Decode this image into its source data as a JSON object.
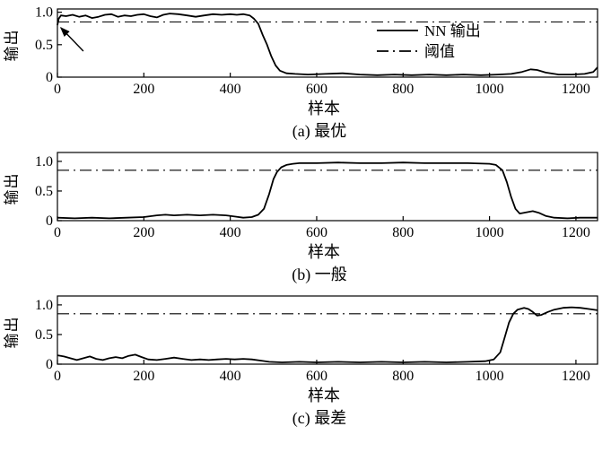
{
  "colors": {
    "line": "#000000",
    "threshold": "#000000",
    "axis": "#000000",
    "background": "#ffffff"
  },
  "chart_data": [
    {
      "id": "a",
      "type": "line",
      "xlabel": "样本",
      "ylabel": "输出",
      "caption": "(a) 最优",
      "xlim": [
        0,
        1250
      ],
      "ylim": [
        0,
        1.05
      ],
      "x_ticks": [
        0,
        200,
        400,
        600,
        800,
        1000,
        1200
      ],
      "y_ticks": [
        0,
        0.5,
        1.0
      ],
      "y_tick_labels": [
        "0",
        "0.5",
        "1.0"
      ],
      "grid": false,
      "threshold": 0.85,
      "legend": [
        {
          "label": "NN 输出",
          "style": "solid"
        },
        {
          "label": "阈值",
          "style": "dashdot"
        }
      ],
      "legend_position": "right-center",
      "arrow": {
        "from": [
          60,
          0.4
        ],
        "to": [
          8,
          0.76
        ]
      },
      "series": [
        [
          0,
          0.8
        ],
        [
          3,
          0.9
        ],
        [
          8,
          0.95
        ],
        [
          20,
          0.94
        ],
        [
          35,
          0.96
        ],
        [
          50,
          0.93
        ],
        [
          65,
          0.95
        ],
        [
          80,
          0.91
        ],
        [
          95,
          0.93
        ],
        [
          110,
          0.96
        ],
        [
          125,
          0.97
        ],
        [
          140,
          0.93
        ],
        [
          155,
          0.95
        ],
        [
          170,
          0.94
        ],
        [
          185,
          0.96
        ],
        [
          200,
          0.97
        ],
        [
          215,
          0.94
        ],
        [
          230,
          0.92
        ],
        [
          245,
          0.96
        ],
        [
          260,
          0.98
        ],
        [
          280,
          0.97
        ],
        [
          300,
          0.95
        ],
        [
          320,
          0.93
        ],
        [
          340,
          0.95
        ],
        [
          360,
          0.97
        ],
        [
          380,
          0.96
        ],
        [
          400,
          0.97
        ],
        [
          415,
          0.96
        ],
        [
          430,
          0.97
        ],
        [
          445,
          0.95
        ],
        [
          455,
          0.9
        ],
        [
          465,
          0.82
        ],
        [
          475,
          0.65
        ],
        [
          485,
          0.5
        ],
        [
          495,
          0.32
        ],
        [
          505,
          0.18
        ],
        [
          515,
          0.1
        ],
        [
          530,
          0.06
        ],
        [
          550,
          0.05
        ],
        [
          580,
          0.04
        ],
        [
          620,
          0.05
        ],
        [
          660,
          0.06
        ],
        [
          700,
          0.04
        ],
        [
          740,
          0.03
        ],
        [
          780,
          0.04
        ],
        [
          820,
          0.03
        ],
        [
          860,
          0.04
        ],
        [
          900,
          0.03
        ],
        [
          940,
          0.04
        ],
        [
          980,
          0.03
        ],
        [
          1020,
          0.04
        ],
        [
          1050,
          0.05
        ],
        [
          1075,
          0.08
        ],
        [
          1095,
          0.12
        ],
        [
          1110,
          0.11
        ],
        [
          1130,
          0.07
        ],
        [
          1160,
          0.04
        ],
        [
          1190,
          0.04
        ],
        [
          1220,
          0.05
        ],
        [
          1240,
          0.08
        ],
        [
          1250,
          0.15
        ]
      ]
    },
    {
      "id": "b",
      "type": "line",
      "xlabel": "样本",
      "ylabel": "输出",
      "caption": "(b) 一般",
      "xlim": [
        0,
        1250
      ],
      "ylim": [
        0,
        1.15
      ],
      "x_ticks": [
        0,
        200,
        400,
        600,
        800,
        1000,
        1200
      ],
      "y_ticks": [
        0,
        0.5,
        1.0
      ],
      "y_tick_labels": [
        "0",
        "0.5",
        "1.0"
      ],
      "grid": false,
      "threshold": 0.85,
      "legend": null,
      "series": [
        [
          0,
          0.05
        ],
        [
          40,
          0.04
        ],
        [
          80,
          0.05
        ],
        [
          120,
          0.04
        ],
        [
          160,
          0.05
        ],
        [
          200,
          0.06
        ],
        [
          230,
          0.09
        ],
        [
          250,
          0.1
        ],
        [
          270,
          0.09
        ],
        [
          300,
          0.1
        ],
        [
          330,
          0.09
        ],
        [
          360,
          0.1
        ],
        [
          390,
          0.09
        ],
        [
          410,
          0.07
        ],
        [
          430,
          0.05
        ],
        [
          450,
          0.06
        ],
        [
          465,
          0.1
        ],
        [
          478,
          0.2
        ],
        [
          490,
          0.45
        ],
        [
          500,
          0.7
        ],
        [
          508,
          0.82
        ],
        [
          518,
          0.9
        ],
        [
          530,
          0.94
        ],
        [
          545,
          0.96
        ],
        [
          560,
          0.97
        ],
        [
          600,
          0.97
        ],
        [
          650,
          0.98
        ],
        [
          700,
          0.97
        ],
        [
          750,
          0.97
        ],
        [
          800,
          0.98
        ],
        [
          850,
          0.97
        ],
        [
          900,
          0.97
        ],
        [
          950,
          0.97
        ],
        [
          1000,
          0.96
        ],
        [
          1015,
          0.94
        ],
        [
          1030,
          0.85
        ],
        [
          1040,
          0.65
        ],
        [
          1050,
          0.4
        ],
        [
          1060,
          0.2
        ],
        [
          1070,
          0.12
        ],
        [
          1085,
          0.14
        ],
        [
          1100,
          0.16
        ],
        [
          1115,
          0.13
        ],
        [
          1130,
          0.08
        ],
        [
          1150,
          0.05
        ],
        [
          1180,
          0.04
        ],
        [
          1210,
          0.05
        ],
        [
          1250,
          0.05
        ]
      ]
    },
    {
      "id": "c",
      "type": "line",
      "xlabel": "样本",
      "ylabel": "输出",
      "caption": "(c) 最差",
      "xlim": [
        0,
        1250
      ],
      "ylim": [
        0,
        1.15
      ],
      "x_ticks": [
        0,
        200,
        400,
        600,
        800,
        1000,
        1200
      ],
      "y_ticks": [
        0,
        0.5,
        1.0
      ],
      "y_tick_labels": [
        "0",
        "0.5",
        "1.0"
      ],
      "grid": false,
      "threshold": 0.85,
      "legend": null,
      "series": [
        [
          0,
          0.15
        ],
        [
          15,
          0.13
        ],
        [
          30,
          0.1
        ],
        [
          45,
          0.07
        ],
        [
          60,
          0.1
        ],
        [
          75,
          0.13
        ],
        [
          90,
          0.09
        ],
        [
          105,
          0.07
        ],
        [
          120,
          0.1
        ],
        [
          135,
          0.12
        ],
        [
          150,
          0.1
        ],
        [
          165,
          0.14
        ],
        [
          180,
          0.16
        ],
        [
          195,
          0.12
        ],
        [
          210,
          0.08
        ],
        [
          230,
          0.07
        ],
        [
          250,
          0.09
        ],
        [
          270,
          0.11
        ],
        [
          290,
          0.09
        ],
        [
          310,
          0.07
        ],
        [
          330,
          0.08
        ],
        [
          350,
          0.07
        ],
        [
          370,
          0.08
        ],
        [
          390,
          0.09
        ],
        [
          410,
          0.08
        ],
        [
          430,
          0.09
        ],
        [
          450,
          0.08
        ],
        [
          470,
          0.06
        ],
        [
          490,
          0.04
        ],
        [
          520,
          0.03
        ],
        [
          560,
          0.04
        ],
        [
          600,
          0.03
        ],
        [
          650,
          0.04
        ],
        [
          700,
          0.03
        ],
        [
          750,
          0.04
        ],
        [
          800,
          0.03
        ],
        [
          850,
          0.04
        ],
        [
          900,
          0.03
        ],
        [
          950,
          0.04
        ],
        [
          990,
          0.05
        ],
        [
          1010,
          0.08
        ],
        [
          1025,
          0.2
        ],
        [
          1035,
          0.45
        ],
        [
          1045,
          0.7
        ],
        [
          1055,
          0.85
        ],
        [
          1065,
          0.92
        ],
        [
          1080,
          0.95
        ],
        [
          1090,
          0.93
        ],
        [
          1100,
          0.88
        ],
        [
          1110,
          0.82
        ],
        [
          1120,
          0.83
        ],
        [
          1135,
          0.88
        ],
        [
          1150,
          0.92
        ],
        [
          1170,
          0.95
        ],
        [
          1190,
          0.96
        ],
        [
          1210,
          0.95
        ],
        [
          1230,
          0.93
        ],
        [
          1250,
          0.91
        ]
      ]
    }
  ]
}
